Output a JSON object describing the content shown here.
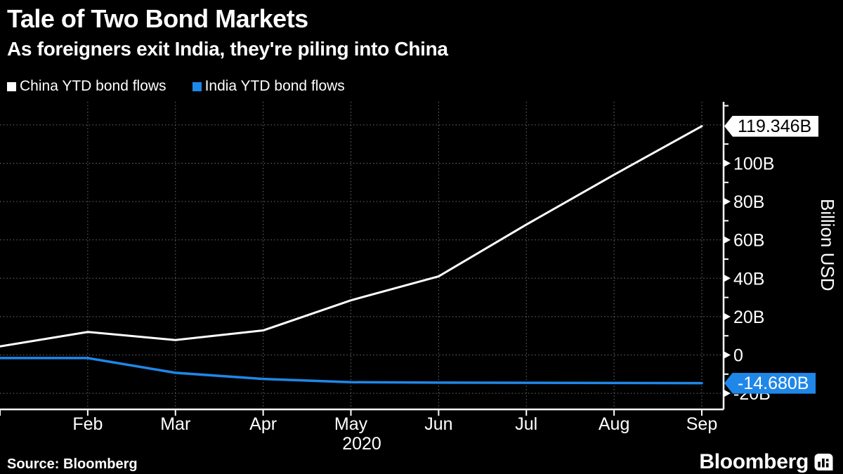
{
  "header": {
    "title": "Tale of Two Bond Markets",
    "subtitle": "As foreigners exit India, they're piling into China"
  },
  "legend": {
    "items": [
      {
        "label": "China YTD bond flows",
        "color": "#ffffff"
      },
      {
        "label": "India YTD bond flows",
        "color": "#1f87e8"
      }
    ]
  },
  "chart_data": {
    "type": "line",
    "x_labels": [
      "",
      "Feb",
      "Mar",
      "Apr",
      "May",
      "Jun",
      "Jul",
      "Aug",
      "Sep"
    ],
    "year_label": "2020",
    "ylabel": "Billion USD",
    "ylim": [
      -28.4,
      132
    ],
    "y_major_step": 20,
    "y_minor_step": 10,
    "grid": "dotted",
    "legend_position": "top-left",
    "y_ticks": [
      {
        "value": 120,
        "label": ""
      },
      {
        "value": 100,
        "label": "100B"
      },
      {
        "value": 80,
        "label": "80B"
      },
      {
        "value": 60,
        "label": "60B"
      },
      {
        "value": 40,
        "label": "40B"
      },
      {
        "value": 20,
        "label": "20B"
      },
      {
        "value": 0,
        "label": "0"
      },
      {
        "value": -20,
        "label": "-20B"
      }
    ],
    "series": [
      {
        "name": "China YTD bond flows",
        "color": "#ffffff",
        "values": [
          4.5,
          12,
          7.8,
          12.8,
          28.5,
          41,
          68,
          94,
          119.346
        ],
        "end_label": "119.346B",
        "badge_bg": "#ffffff",
        "badge_fg": "#000000"
      },
      {
        "name": "India YTD bond flows",
        "color": "#1f87e8",
        "values": [
          -1.6,
          -1.6,
          -9.3,
          -12.5,
          -14.2,
          -14.4,
          -14.5,
          -14.6,
          -14.68
        ],
        "end_label": "-14.680B",
        "badge_bg": "#1f87e8",
        "badge_fg": "#ffffff"
      }
    ]
  },
  "footer": {
    "source": "Source: Bloomberg",
    "logo_text": "Bloomberg"
  },
  "colors": {
    "background": "#000000",
    "text": "#ffffff",
    "grid": "#6f6f6f",
    "accent_blue": "#1f87e8"
  }
}
